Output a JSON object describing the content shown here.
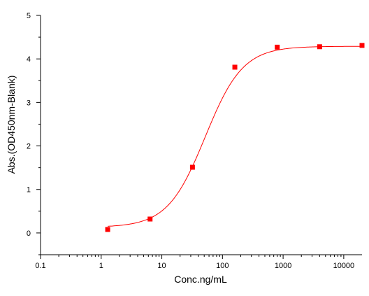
{
  "chart_data": {
    "type": "scatter",
    "title": "",
    "xlabel": "Conc.ng/mL",
    "ylabel": "Abs.(OD450nm-Blank)",
    "x_scale": "log",
    "xlim": [
      0.1,
      20000
    ],
    "ylim": [
      -0.5,
      5
    ],
    "x_ticks": [
      0.1,
      1,
      10,
      100,
      1000,
      10000
    ],
    "x_tick_labels": [
      "0.1",
      "1",
      "10",
      "100",
      "1000",
      "10000"
    ],
    "y_ticks": [
      0,
      1,
      2,
      3,
      4,
      5
    ],
    "y_tick_labels": [
      "0",
      "1",
      "2",
      "3",
      "4",
      "5"
    ],
    "grid": false,
    "colors": {
      "series": "#ff0000",
      "axis": "#000000"
    },
    "series": [
      {
        "points": [
          {
            "x": 1.28,
            "y": 0.08
          },
          {
            "x": 6.4,
            "y": 0.32
          },
          {
            "x": 32,
            "y": 1.51
          },
          {
            "x": 160,
            "y": 3.81
          },
          {
            "x": 800,
            "y": 4.27
          },
          {
            "x": 4000,
            "y": 4.28
          },
          {
            "x": 20000,
            "y": 4.31
          }
        ],
        "fit": {
          "type": "4PL",
          "bottom": 0.13,
          "top": 4.29,
          "ec50": 52,
          "hill": 1.4,
          "x_range": [
            1.28,
            20000
          ]
        }
      }
    ]
  }
}
